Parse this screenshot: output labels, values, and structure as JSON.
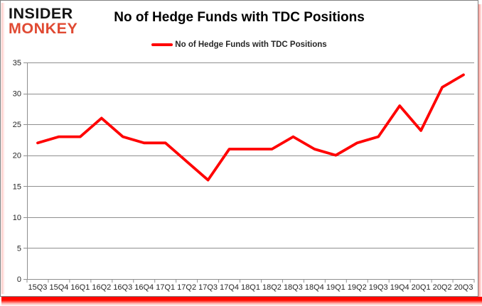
{
  "logo": {
    "line1": "INSIDER",
    "line2": "MONKEY"
  },
  "header": {
    "title": "No of Hedge Funds with TDC Positions"
  },
  "legend": {
    "label": "No of Hedge Funds with TDC Positions"
  },
  "chart_data": {
    "type": "line",
    "title": "No of Hedge Funds with TDC Positions",
    "categories": [
      "15Q3",
      "15Q4",
      "16Q1",
      "16Q2",
      "16Q3",
      "16Q4",
      "17Q1",
      "17Q2",
      "17Q3",
      "17Q4",
      "18Q1",
      "18Q2",
      "18Q3",
      "18Q4",
      "19Q1",
      "19Q2",
      "19Q3",
      "19Q4",
      "20Q1",
      "20Q2",
      "20Q3"
    ],
    "series": [
      {
        "name": "No of Hedge Funds with TDC Positions",
        "values": [
          22,
          23,
          23,
          26,
          23,
          22,
          22,
          19,
          16,
          21,
          21,
          21,
          23,
          21,
          20,
          22,
          23,
          28,
          24,
          31,
          33
        ]
      }
    ],
    "xlabel": "",
    "ylabel": "",
    "ylim": [
      0,
      35
    ],
    "yticks": [
      0,
      5,
      10,
      15,
      20,
      25,
      30,
      35
    ],
    "grid": true,
    "legend_position": "top-center"
  },
  "colors": {
    "line_red": "#FF0000",
    "logo_red": "#E04A33",
    "grid_gray": "#8F8F8F",
    "axis_text": "#262626",
    "border_gray": "#808080"
  }
}
